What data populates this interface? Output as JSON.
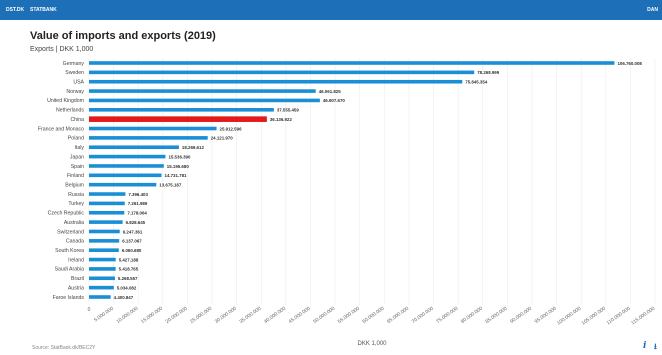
{
  "header": {
    "brand": "DST.DK",
    "nav": "STATBANK",
    "right": "DAN"
  },
  "footer": {
    "source": "Source: StatBank.dk/BEC2Y"
  },
  "colors": {
    "bar": "#1a8fd6",
    "highlight": "#e41a1a",
    "topbar": "#1d6fb8"
  },
  "chart_data": {
    "type": "bar",
    "orientation": "horizontal",
    "title": "Value of imports and exports (2019)",
    "subtitle": "Exports | DKK 1,000",
    "xlabel": "DKK 1,000",
    "xlim": [
      0,
      115000000
    ],
    "highlight": "China",
    "categories": [
      "Germany",
      "Sweden",
      "USA",
      "Norway",
      "United Kingdom",
      "Netherlands",
      "China",
      "France and Monaco",
      "Poland",
      "Italy",
      "Japan",
      "Spain",
      "Finland",
      "Belgium",
      "Russia",
      "Turkey",
      "Czech Republic",
      "Australia",
      "Switzerland",
      "Canada",
      "South Korea",
      "Ireland",
      "Saudi Arabia",
      "Brazil",
      "Austria",
      "Faroe Islands"
    ],
    "values": [
      106760008,
      78268999,
      75845354,
      46061825,
      46907670,
      37555459,
      36136922,
      25912596,
      24121970,
      18269612,
      15536390,
      15195680,
      14731781,
      13675187,
      7396403,
      7261989,
      7178064,
      6828645,
      6247361,
      6137067,
      6060680,
      5427188,
      5418765,
      5268557,
      5034082,
      4400847
    ],
    "value_labels": [
      "106.760.008",
      "78.268.999",
      "75.845.354",
      "46.061.825",
      "46.907.670",
      "37.555.459",
      "36.136.922",
      "25.912.596",
      "24.121.970",
      "18.269.612",
      "15.536.390",
      "15.195.680",
      "14.731.781",
      "13.675.187",
      "7.396.403",
      "7.261.989",
      "7.178.064",
      "6.828.645",
      "6.247.361",
      "6.137.067",
      "6.060.680",
      "5.427.188",
      "5.418.765",
      "5.268.557",
      "5.034.082",
      "4.400.847"
    ],
    "tick_values": [
      0,
      5000000,
      10000000,
      15000000,
      20000000,
      25000000,
      30000000,
      35000000,
      40000000,
      45000000,
      50000000,
      55000000,
      60000000,
      65000000,
      70000000,
      75000000,
      80000000,
      85000000,
      90000000,
      95000000,
      100000000,
      105000000,
      110000000,
      115000000
    ],
    "tick_labels": [
      "0",
      "5.000.000",
      "10.000.000",
      "15.000.000",
      "20.000.000",
      "25.000.000",
      "30.000.000",
      "35.000.000",
      "40.000.000",
      "45.000.000",
      "50.000.000",
      "55.000.000",
      "60.000.000",
      "65.000.000",
      "70.000.000",
      "75.000.000",
      "80.000.000",
      "85.000.000",
      "90.000.000",
      "95.000.000",
      "100.000.000",
      "105.000.000",
      "110.000.000",
      "115.000.000"
    ],
    "grid": true
  }
}
